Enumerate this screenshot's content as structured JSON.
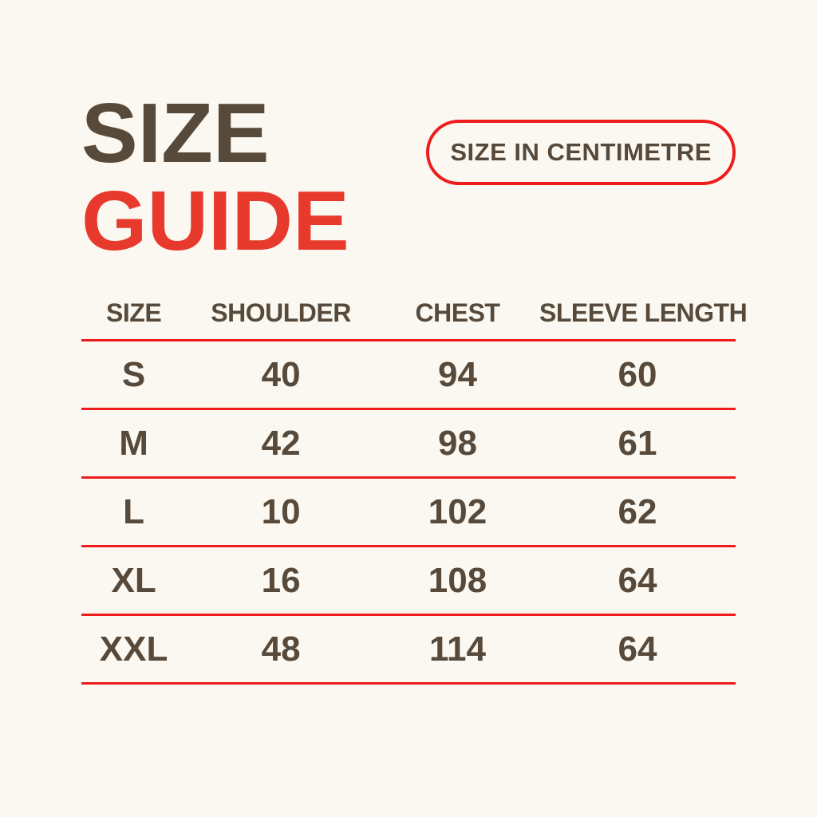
{
  "title": {
    "line1": "SIZE",
    "line2": "GUIDE"
  },
  "badge": {
    "label": "SIZE IN CENTIMETRE"
  },
  "colors": {
    "background": "#fbf8f1",
    "text_brown": "#574a3a",
    "title_red": "#e8392d",
    "rule_red": "#ee1c1c",
    "badge_border_red": "#ee1d1d"
  },
  "chart_data": {
    "type": "table",
    "title": "SIZE GUIDE",
    "unit_note": "SIZE IN CENTIMETRE",
    "columns": [
      "SIZE",
      "SHOULDER",
      "CHEST",
      "SLEEVE LENGTH"
    ],
    "rows": [
      [
        "S",
        40,
        94,
        60
      ],
      [
        "M",
        42,
        98,
        61
      ],
      [
        "L",
        10,
        102,
        62
      ],
      [
        "XL",
        16,
        108,
        64
      ],
      [
        "XXL",
        48,
        114,
        64
      ]
    ]
  }
}
